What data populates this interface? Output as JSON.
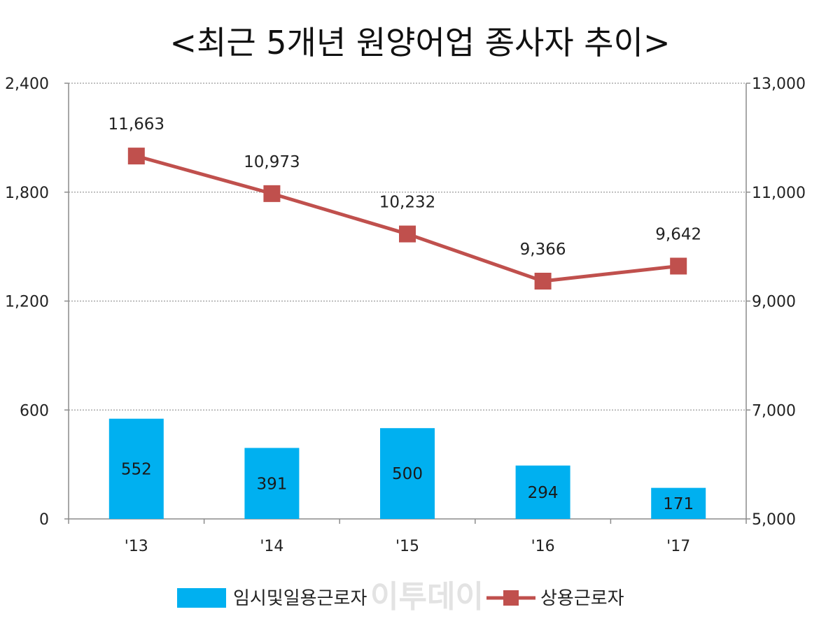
{
  "watermark": "이투데이",
  "chart_data": {
    "type": "bar+line",
    "title": "<최근 5개년 원양어업 종사자 추이>",
    "categories": [
      "'13",
      "'14",
      "'15",
      "'16",
      "'17"
    ],
    "y_left": {
      "min": 0,
      "max": 2400,
      "ticks": [
        0,
        600,
        1200,
        1800,
        2400
      ],
      "tick_labels": [
        "0",
        "600",
        "1,200",
        "1,800",
        "2,400"
      ]
    },
    "y_right": {
      "min": 5000,
      "max": 13000,
      "ticks": [
        5000,
        7000,
        9000,
        11000,
        13000
      ],
      "tick_labels": [
        "5,000",
        "7,000",
        "9,000",
        "11,000",
        "13,000"
      ]
    },
    "grid": true,
    "legend_position": "bottom",
    "series": [
      {
        "name": "임시및일용근로자",
        "type": "bar",
        "axis": "left",
        "color": "#00b0f0",
        "values": [
          552,
          391,
          500,
          294,
          171
        ],
        "labels": [
          "552",
          "391",
          "500",
          "294",
          "171"
        ]
      },
      {
        "name": "상용근로자",
        "type": "line",
        "axis": "right",
        "color": "#c0504d",
        "values": [
          11663,
          10973,
          10232,
          9366,
          9642
        ],
        "labels": [
          "11,663",
          "10,973",
          "10,232",
          "9,366",
          "9,642"
        ]
      }
    ]
  }
}
